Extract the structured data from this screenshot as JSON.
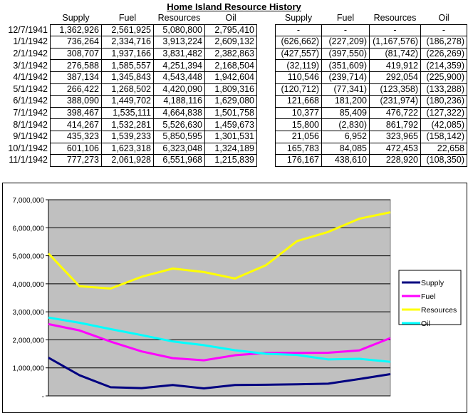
{
  "title": "Home Island Resource History",
  "columns": [
    "Supply",
    "Fuel",
    "Resources",
    "Oil"
  ],
  "dates": [
    "12/7/1941",
    "1/1/1942",
    "2/1/1942",
    "3/1/1942",
    "4/1/1942",
    "5/1/1942",
    "6/1/1942",
    "7/1/1942",
    "8/1/1942",
    "9/1/1942",
    "10/1/1942",
    "11/1/1942"
  ],
  "totals": [
    [
      "1,362,926",
      "2,561,925",
      "5,080,800",
      "2,795,410"
    ],
    [
      "736,264",
      "2,334,716",
      "3,913,224",
      "2,609,132"
    ],
    [
      "308,707",
      "1,937,166",
      "3,831,482",
      "2,382,863"
    ],
    [
      "276,588",
      "1,585,557",
      "4,251,394",
      "2,168,504"
    ],
    [
      "387,134",
      "1,345,843",
      "4,543,448",
      "1,942,604"
    ],
    [
      "266,422",
      "1,268,502",
      "4,420,090",
      "1,809,316"
    ],
    [
      "388,090",
      "1,449,702",
      "4,188,116",
      "1,629,080"
    ],
    [
      "398,467",
      "1,535,111",
      "4,664,838",
      "1,501,758"
    ],
    [
      "414,267",
      "1,532,281",
      "5,526,630",
      "1,459,673"
    ],
    [
      "435,323",
      "1,539,233",
      "5,850,595",
      "1,301,531"
    ],
    [
      "601,106",
      "1,623,318",
      "6,323,048",
      "1,324,189"
    ],
    [
      "777,273",
      "2,061,928",
      "6,551,968",
      "1,215,839"
    ]
  ],
  "changes": [
    [
      "-",
      "-",
      "-",
      "-"
    ],
    [
      "(626,662)",
      "(227,209)",
      "(1,167,576)",
      "(186,278)"
    ],
    [
      "(427,557)",
      "(397,550)",
      "(81,742)",
      "(226,269)"
    ],
    [
      "(32,119)",
      "(351,609)",
      "419,912",
      "(214,359)"
    ],
    [
      "110,546",
      "(239,714)",
      "292,054",
      "(225,900)"
    ],
    [
      "(120,712)",
      "(77,341)",
      "(123,358)",
      "(133,288)"
    ],
    [
      "121,668",
      "181,200",
      "(231,974)",
      "(180,236)"
    ],
    [
      "10,377",
      "85,409",
      "476,722",
      "(127,322)"
    ],
    [
      "15,800",
      "(2,830)",
      "861,792",
      "(42,085)"
    ],
    [
      "21,056",
      "6,952",
      "323,965",
      "(158,142)"
    ],
    [
      "165,783",
      "84,085",
      "472,453",
      "22,658"
    ],
    [
      "176,167",
      "438,610",
      "228,920",
      "(108,350)"
    ]
  ],
  "chart_data": {
    "type": "line",
    "title": "",
    "xlabel": "",
    "ylabel": "",
    "x": [
      "12/7/1941",
      "1/1/1942",
      "2/1/1942",
      "3/1/1942",
      "4/1/1942",
      "5/1/1942",
      "6/1/1942",
      "7/1/1942",
      "8/1/1942",
      "9/1/1942",
      "10/1/1942",
      "11/1/1942"
    ],
    "ylim": [
      0,
      7000000
    ],
    "yticks": [
      "-",
      "1,000,000",
      "2,000,000",
      "3,000,000",
      "4,000,000",
      "5,000,000",
      "6,000,000",
      "7,000,000"
    ],
    "grid": true,
    "legend": "right",
    "series": [
      {
        "name": "Supply",
        "color": "#000080",
        "values": [
          1362926,
          736264,
          308707,
          276588,
          387134,
          266422,
          388090,
          398467,
          414267,
          435323,
          601106,
          777273
        ]
      },
      {
        "name": "Fuel",
        "color": "#ff00ff",
        "values": [
          2561925,
          2334716,
          1937166,
          1585557,
          1345843,
          1268502,
          1449702,
          1535111,
          1532281,
          1539233,
          1623318,
          2061928
        ]
      },
      {
        "name": "Resources",
        "color": "#ffff00",
        "values": [
          5080800,
          3913224,
          3831482,
          4251394,
          4543448,
          4420090,
          4188116,
          4664838,
          5526630,
          5850595,
          6323048,
          6551968
        ]
      },
      {
        "name": "Oil",
        "color": "#00ffff",
        "values": [
          2795410,
          2609132,
          2382863,
          2168504,
          1942604,
          1809316,
          1629080,
          1501758,
          1459673,
          1301531,
          1324189,
          1215839
        ]
      }
    ],
    "plot_bg": "#c0c0c0"
  }
}
